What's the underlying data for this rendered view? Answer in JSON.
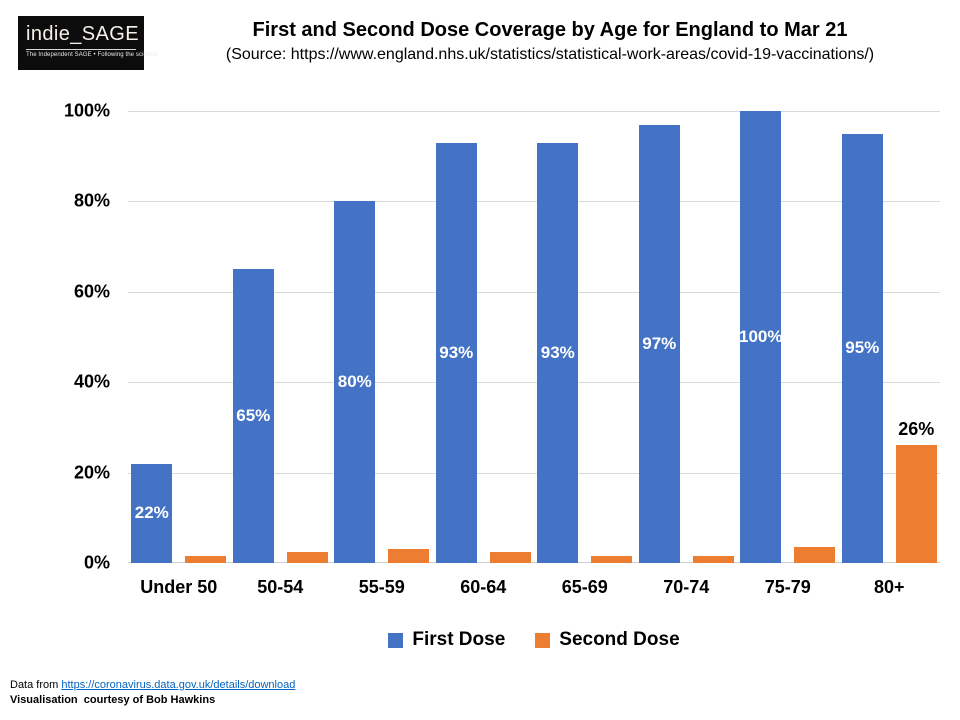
{
  "logo": {
    "brand": "indie_SAGE",
    "tagline": "The Independent SAGE • Following the science"
  },
  "header": {
    "title": "First and Second Dose Coverage by Age for England to Mar 21",
    "subtitle": "(Source: https://www.england.nhs.uk/statistics/statistical-work-areas/covid-19-vaccinations/)"
  },
  "chart_data": {
    "type": "bar",
    "title": "First and Second Dose Coverage by Age for England to Mar 21",
    "categories": [
      "Under 50",
      "50-54",
      "55-59",
      "60-64",
      "65-69",
      "70-74",
      "75-79",
      "80+"
    ],
    "series": [
      {
        "name": "First Dose",
        "color": "#4472C4",
        "values": [
          22,
          65,
          80,
          93,
          93,
          97,
          100,
          95
        ],
        "labels": [
          "22%",
          "65%",
          "80%",
          "93%",
          "93%",
          "97%",
          "100%",
          "95%"
        ],
        "label_position": "inside-center",
        "label_color": "#ffffff"
      },
      {
        "name": "Second Dose",
        "color": "#ED7D31",
        "values": [
          1.5,
          2.5,
          3,
          2.5,
          1.5,
          1.5,
          3.5,
          26
        ],
        "labels": [
          "",
          "",
          "",
          "",
          "",
          "",
          "",
          "26%"
        ],
        "label_position": "outside-top",
        "label_color": "#000000"
      }
    ],
    "xlabel": "",
    "ylabel": "",
    "ylim": [
      0,
      100
    ],
    "yticks": [
      "0%",
      "20%",
      "40%",
      "60%",
      "80%",
      "100%"
    ],
    "grid": "horizontal",
    "legend_position": "bottom"
  },
  "footer": {
    "prefix": "Data from ",
    "link": "https://coronavirus.data.gov.uk/details/download",
    "credit": "Visualisation  courtesy of Bob Hawkins"
  }
}
